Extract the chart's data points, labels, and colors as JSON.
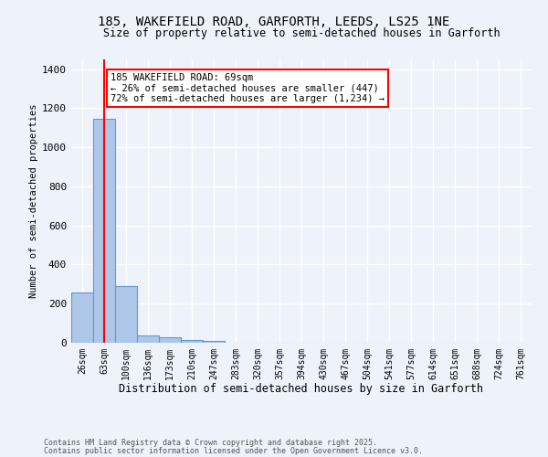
{
  "title_line1": "185, WAKEFIELD ROAD, GARFORTH, LEEDS, LS25 1NE",
  "title_line2": "Size of property relative to semi-detached houses in Garforth",
  "xlabel": "Distribution of semi-detached houses by size in Garforth",
  "ylabel": "Number of semi-detached properties",
  "bar_labels": [
    "26sqm",
    "63sqm",
    "100sqm",
    "136sqm",
    "173sqm",
    "210sqm",
    "247sqm",
    "283sqm",
    "320sqm",
    "357sqm",
    "394sqm",
    "430sqm",
    "467sqm",
    "504sqm",
    "541sqm",
    "577sqm",
    "614sqm",
    "651sqm",
    "688sqm",
    "724sqm",
    "761sqm"
  ],
  "bar_values": [
    255,
    1145,
    290,
    38,
    30,
    15,
    10,
    0,
    0,
    0,
    0,
    0,
    0,
    0,
    0,
    0,
    0,
    0,
    0,
    0,
    0
  ],
  "bar_color": "#aec6e8",
  "bar_edge_color": "#5b9bd5",
  "vline_x": 1.0,
  "annotation_text": "185 WAKEFIELD ROAD: 69sqm\n← 26% of semi-detached houses are smaller (447)\n72% of semi-detached houses are larger (1,234) →",
  "annotation_box_color": "white",
  "annotation_box_edge_color": "red",
  "footer_line1": "Contains HM Land Registry data © Crown copyright and database right 2025.",
  "footer_line2": "Contains public sector information licensed under the Open Government Licence v3.0.",
  "ylim": [
    0,
    1450
  ],
  "background_color": "#eef2fb",
  "grid_color": "#ffffff",
  "vline_color": "red",
  "yticks": [
    0,
    200,
    400,
    600,
    800,
    1000,
    1200,
    1400
  ]
}
